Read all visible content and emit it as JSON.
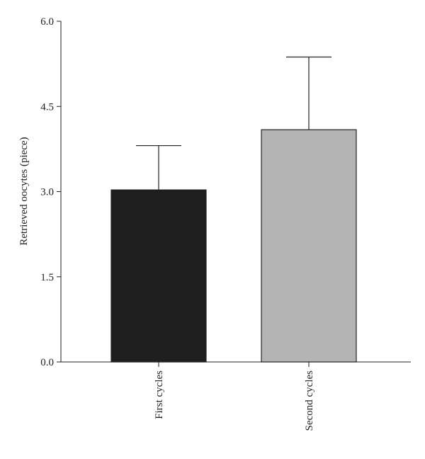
{
  "chart_data": {
    "type": "bar",
    "title": "",
    "xlabel": "",
    "ylabel": "Retrieved oocytes (piece)",
    "categories": [
      "First cycles",
      "Second cycles"
    ],
    "values": [
      3.03,
      4.09
    ],
    "error_upper": [
      3.81,
      5.37
    ],
    "bar_colors": [
      "#1e1e1e",
      "#b4b4b4"
    ],
    "ylim": [
      0,
      6
    ],
    "yticks": [
      "0.0",
      "1.5",
      "3.0",
      "4.5",
      "6.0"
    ],
    "ytick_values": [
      0,
      1.5,
      3,
      4.5,
      6
    ],
    "grid": false,
    "legend": "none"
  }
}
